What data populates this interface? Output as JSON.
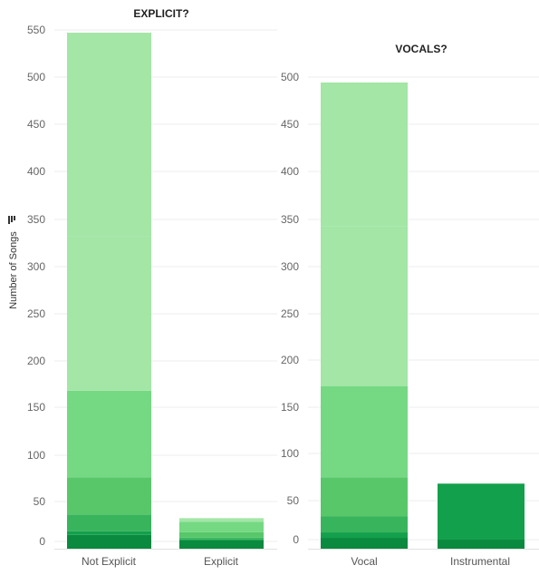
{
  "palette": [
    "#0a8a3f",
    "#13a04c",
    "#38b45c",
    "#57c76a",
    "#74d982",
    "#a3e6a6"
  ],
  "y_axis_title": "Number of Songs",
  "y_axis_sort_icon": "sort-descending-icon",
  "chart_data": [
    {
      "type": "bar",
      "stacked": true,
      "title": "EXPLICIT?",
      "ylabel": "Number of Songs",
      "ylim": [
        0,
        550
      ],
      "yticks": [
        0,
        50,
        100,
        150,
        200,
        250,
        300,
        350,
        400,
        450,
        500,
        550
      ],
      "grid": true,
      "categories": [
        "Not Explicit",
        "Explicit"
      ],
      "stacks": [
        [
          8,
          4,
          18,
          40,
          93,
          166,
          219
        ],
        [
          2,
          1,
          2,
          6,
          11,
          4
        ]
      ]
    },
    {
      "type": "bar",
      "stacked": true,
      "title": "VOCALS?",
      "ylim": [
        0,
        525
      ],
      "yticks": [
        0,
        50,
        100,
        150,
        200,
        250,
        300,
        350,
        400,
        450,
        500
      ],
      "grid": true,
      "categories": [
        "Vocal",
        "Instrumental"
      ],
      "stacks": [
        [
          5,
          6,
          18,
          43,
          101,
          177,
          159
        ],
        [
          3,
          62
        ]
      ]
    }
  ]
}
